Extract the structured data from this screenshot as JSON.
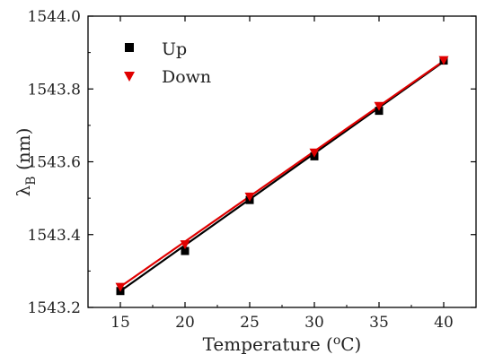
{
  "chart_data": {
    "type": "scatter",
    "x": [
      15,
      20,
      25,
      30,
      35,
      40
    ],
    "series": [
      {
        "name": "Up",
        "marker": "square",
        "color": "#000000",
        "values": [
          1543.245,
          1543.355,
          1543.495,
          1543.615,
          1543.74,
          1543.878
        ],
        "fit": [
          1543.245,
          1543.371,
          1543.497,
          1543.623,
          1543.749,
          1543.875
        ]
      },
      {
        "name": "Down",
        "marker": "triangle-down",
        "color": "#e00000",
        "values": [
          1543.255,
          1543.372,
          1543.503,
          1543.624,
          1543.752,
          1543.878
        ],
        "fit": [
          1543.257,
          1543.381,
          1543.505,
          1543.629,
          1543.753,
          1543.877
        ]
      }
    ],
    "xlim": [
      12.5,
      42.5
    ],
    "ylim": [
      1543.2,
      1544.0
    ],
    "xticks": [
      "15",
      "20",
      "25",
      "30",
      "35",
      "40"
    ],
    "yticks": [
      "1543.2",
      "1543.4",
      "1543.6",
      "1543.8",
      "1544.0"
    ],
    "xlabel": "Temperature (",
    "xlabel_sup": "o",
    "xlabel_unit": "C)",
    "ylabel_symbol": "λ",
    "ylabel_sub": "B",
    "ylabel_unit": " (nm)",
    "legend_position": "top-left",
    "grid": false
  }
}
